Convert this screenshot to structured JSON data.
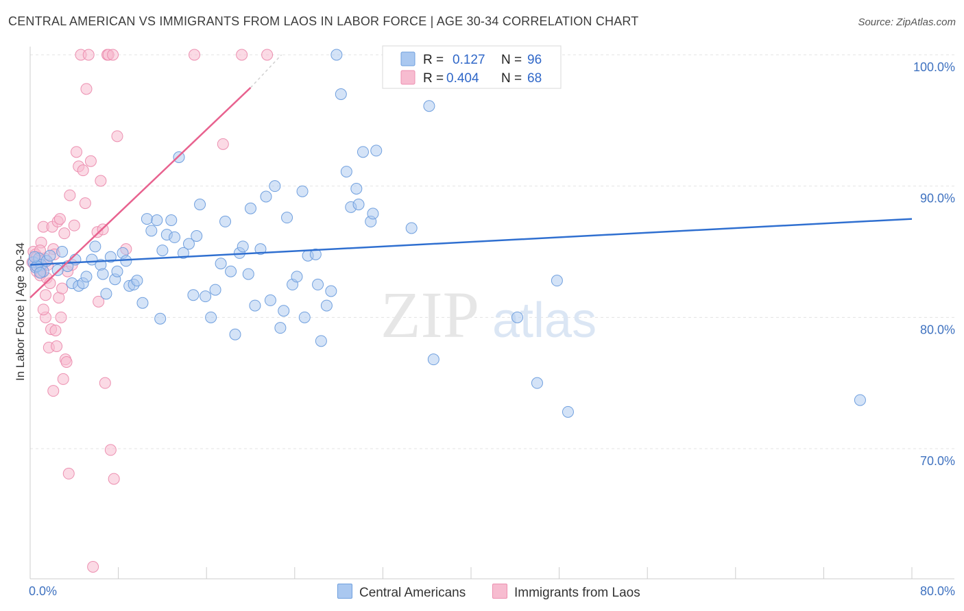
{
  "header": {
    "title": "CENTRAL AMERICAN VS IMMIGRANTS FROM LAOS IN LABOR FORCE | AGE 30-34 CORRELATION CHART",
    "source": "Source: ZipAtlas.com"
  },
  "watermark": {
    "zip": "ZIP",
    "atlas": "atlas"
  },
  "legend": {
    "rows": [
      {
        "r_label": "R = ",
        "r_value": "0.127",
        "n_label": "N = ",
        "n_value": "96"
      },
      {
        "r_label": "R = ",
        "r_value": "0.404",
        "n_label": "N = ",
        "n_value": "68"
      }
    ]
  },
  "colors": {
    "blue_fill": "#aac8f0",
    "blue_stroke": "#6f9fde",
    "blue_line": "#2f6fd0",
    "pink_fill": "#f7bcd0",
    "pink_stroke": "#ec8fb0",
    "pink_line": "#e8628f",
    "grid": "#e3e3e3"
  },
  "chart_data": {
    "type": "scatter",
    "title": "CENTRAL AMERICAN VS IMMIGRANTS FROM LAOS IN LABOR FORCE | AGE 30-34 CORRELATION CHART",
    "xlabel": "",
    "ylabel": "In Labor Force | Age 30-34",
    "xlim": [
      0,
      80
    ],
    "ylim": [
      60,
      102
    ],
    "x_tick_labels": [
      "0.0%",
      "80.0%"
    ],
    "y_ticks": [
      70,
      80,
      90,
      100
    ],
    "y_tick_labels": [
      "70.0%",
      "80.0%",
      "90.0%",
      "100.0%"
    ],
    "grid": true,
    "legend_placement": "top-center",
    "series": [
      {
        "name": "Central Americans",
        "R": 0.127,
        "N": 96,
        "trend": {
          "x": [
            0,
            80
          ],
          "y": [
            84.0,
            87.5
          ]
        },
        "points": [
          [
            0.3,
            84.2
          ],
          [
            0.5,
            83.8
          ],
          [
            0.8,
            84.5
          ],
          [
            1.0,
            84.0
          ],
          [
            1.2,
            83.5
          ],
          [
            1.5,
            84.3
          ],
          [
            0.6,
            83.9
          ],
          [
            0.4,
            84.6
          ],
          [
            1.8,
            84.7
          ],
          [
            2.5,
            83.6
          ],
          [
            2.9,
            85.0
          ],
          [
            3.4,
            83.9
          ],
          [
            3.8,
            82.6
          ],
          [
            4.1,
            84.4
          ],
          [
            4.4,
            82.4
          ],
          [
            4.8,
            82.6
          ],
          [
            5.1,
            83.1
          ],
          [
            5.6,
            84.4
          ],
          [
            5.9,
            85.4
          ],
          [
            6.4,
            84.0
          ],
          [
            6.6,
            83.3
          ],
          [
            6.9,
            81.8
          ],
          [
            7.3,
            84.6
          ],
          [
            7.7,
            82.9
          ],
          [
            7.9,
            83.5
          ],
          [
            8.4,
            84.9
          ],
          [
            8.7,
            84.3
          ],
          [
            9.0,
            82.4
          ],
          [
            9.4,
            82.5
          ],
          [
            9.7,
            82.8
          ],
          [
            10.2,
            81.1
          ],
          [
            10.6,
            87.5
          ],
          [
            11.0,
            86.6
          ],
          [
            11.5,
            87.4
          ],
          [
            11.8,
            79.9
          ],
          [
            12.0,
            85.1
          ],
          [
            12.4,
            86.3
          ],
          [
            12.8,
            87.4
          ],
          [
            13.1,
            86.1
          ],
          [
            13.5,
            92.2
          ],
          [
            13.9,
            84.9
          ],
          [
            14.4,
            85.6
          ],
          [
            14.8,
            81.7
          ],
          [
            15.1,
            86.2
          ],
          [
            15.4,
            88.6
          ],
          [
            15.9,
            81.6
          ],
          [
            16.4,
            80.0
          ],
          [
            16.8,
            82.1
          ],
          [
            17.3,
            84.1
          ],
          [
            17.7,
            87.3
          ],
          [
            18.2,
            83.5
          ],
          [
            18.6,
            78.7
          ],
          [
            19.0,
            84.9
          ],
          [
            19.3,
            85.4
          ],
          [
            19.8,
            83.3
          ],
          [
            20.0,
            88.3
          ],
          [
            20.4,
            80.9
          ],
          [
            20.9,
            85.2
          ],
          [
            21.4,
            89.2
          ],
          [
            21.8,
            81.3
          ],
          [
            22.2,
            90.0
          ],
          [
            22.7,
            79.2
          ],
          [
            23.0,
            80.5
          ],
          [
            23.3,
            87.6
          ],
          [
            23.8,
            82.5
          ],
          [
            24.2,
            83.1
          ],
          [
            24.7,
            89.6
          ],
          [
            24.9,
            80.0
          ],
          [
            25.2,
            84.7
          ],
          [
            25.9,
            84.8
          ],
          [
            26.1,
            82.5
          ],
          [
            26.4,
            78.2
          ],
          [
            26.9,
            80.9
          ],
          [
            27.3,
            82.0
          ],
          [
            27.8,
            100.0
          ],
          [
            28.2,
            97.0
          ],
          [
            28.7,
            91.1
          ],
          [
            29.1,
            88.4
          ],
          [
            29.6,
            89.8
          ],
          [
            29.8,
            88.6
          ],
          [
            30.2,
            92.6
          ],
          [
            30.9,
            87.3
          ],
          [
            31.1,
            87.9
          ],
          [
            31.4,
            92.7
          ],
          [
            33.3,
            100.0
          ],
          [
            34.6,
            86.8
          ],
          [
            36.2,
            96.1
          ],
          [
            36.6,
            76.8
          ],
          [
            38.1,
            100.0
          ],
          [
            42.1,
            100.0
          ],
          [
            44.2,
            80.0
          ],
          [
            46.0,
            75.0
          ],
          [
            47.8,
            82.8
          ],
          [
            48.8,
            72.8
          ],
          [
            75.3,
            73.7
          ],
          [
            0.9,
            83.4
          ]
        ]
      },
      {
        "name": "Immigrants from Laos",
        "R": 0.404,
        "N": 68,
        "trend": {
          "x": [
            0,
            20
          ],
          "y": [
            81.5,
            97.5
          ],
          "dash_x": [
            20,
            22.8
          ],
          "dash_y": [
            97.5,
            100.0
          ]
        },
        "points": [
          [
            0.2,
            84.2
          ],
          [
            0.3,
            85.0
          ],
          [
            0.4,
            84.0
          ],
          [
            0.5,
            84.8
          ],
          [
            0.6,
            83.5
          ],
          [
            0.7,
            84.1
          ],
          [
            0.8,
            84.3
          ],
          [
            0.9,
            83.2
          ],
          [
            1.0,
            85.7
          ],
          [
            1.1,
            83.9
          ],
          [
            1.2,
            86.9
          ],
          [
            1.3,
            84.5
          ],
          [
            1.4,
            81.7
          ],
          [
            1.5,
            83.0
          ],
          [
            1.6,
            84.0
          ],
          [
            1.7,
            77.7
          ],
          [
            1.8,
            82.6
          ],
          [
            1.9,
            79.1
          ],
          [
            2.0,
            86.9
          ],
          [
            2.1,
            85.2
          ],
          [
            2.2,
            84.8
          ],
          [
            2.3,
            79.0
          ],
          [
            2.4,
            77.8
          ],
          [
            2.5,
            87.3
          ],
          [
            2.6,
            81.5
          ],
          [
            2.7,
            87.5
          ],
          [
            2.8,
            80.0
          ],
          [
            2.9,
            82.2
          ],
          [
            3.0,
            75.3
          ],
          [
            3.1,
            86.4
          ],
          [
            3.2,
            76.8
          ],
          [
            3.3,
            76.6
          ],
          [
            3.4,
            83.5
          ],
          [
            3.5,
            68.1
          ],
          [
            3.6,
            89.3
          ],
          [
            3.8,
            84.0
          ],
          [
            4.0,
            87.0
          ],
          [
            4.2,
            92.6
          ],
          [
            4.4,
            91.5
          ],
          [
            4.6,
            100.0
          ],
          [
            4.8,
            91.2
          ],
          [
            5.0,
            88.7
          ],
          [
            5.1,
            97.4
          ],
          [
            5.3,
            100.0
          ],
          [
            5.5,
            91.9
          ],
          [
            5.7,
            61.0
          ],
          [
            6.1,
            86.5
          ],
          [
            6.2,
            81.2
          ],
          [
            6.4,
            90.4
          ],
          [
            6.6,
            86.7
          ],
          [
            6.8,
            75.0
          ],
          [
            7.0,
            100.0
          ],
          [
            7.1,
            100.0
          ],
          [
            7.3,
            69.9
          ],
          [
            7.5,
            100.0
          ],
          [
            7.6,
            67.7
          ],
          [
            7.9,
            93.8
          ],
          [
            8.7,
            85.2
          ],
          [
            14.9,
            100.0
          ],
          [
            17.5,
            93.2
          ],
          [
            19.2,
            100.0
          ],
          [
            21.5,
            100.0
          ],
          [
            1.4,
            80.0
          ],
          [
            2.1,
            74.4
          ],
          [
            1.2,
            80.6
          ],
          [
            1.0,
            83.4
          ],
          [
            0.6,
            84.6
          ],
          [
            0.9,
            85.1
          ]
        ]
      }
    ]
  },
  "bottom_legend": [
    {
      "label": "Central Americans"
    },
    {
      "label": "Immigrants from Laos"
    }
  ]
}
